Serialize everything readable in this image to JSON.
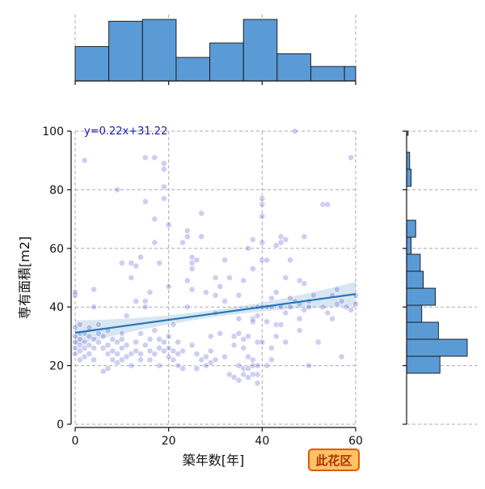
{
  "chart_data": {
    "type": "scatter",
    "xlabel": "築年数[年]",
    "ylabel": "専有面積[m2]",
    "xlim": [
      0,
      60
    ],
    "ylim": [
      0,
      100
    ],
    "xticks": [
      0,
      20,
      40,
      60
    ],
    "yticks": [
      0,
      20,
      40,
      60,
      80,
      100
    ],
    "grid": true,
    "regression": {
      "equation": "y=0.22x+31.22",
      "slope": 0.22,
      "intercept": 31.22
    },
    "badge": "此花区",
    "colors": {
      "point": "#3b3bc8",
      "line": "#1f77b4",
      "band": "#1f77b4",
      "hist": "#5b9bd5",
      "badge_fill": "#ffc266",
      "badge_stroke": "#e05a00"
    },
    "hist_x": {
      "bin_edges": [
        0,
        7.2,
        14.4,
        21.6,
        28.8,
        36.0,
        43.2,
        50.4,
        57.6,
        60
      ],
      "counts": [
        19,
        33,
        34,
        13,
        21,
        34,
        15,
        8,
        8
      ]
    },
    "hist_y": {
      "bin_edges": [
        0,
        11.6,
        17.4,
        23.2,
        29.0,
        34.8,
        40.6,
        46.4,
        52.2,
        58.0,
        63.8,
        69.6,
        75.4,
        81.2,
        87.0,
        92.8,
        98.6,
        100
      ],
      "counts": [
        0,
        0,
        22,
        40,
        21,
        10,
        19,
        11,
        9,
        3,
        6,
        0,
        0,
        3,
        2,
        0,
        1
      ]
    },
    "points": [
      [
        0,
        26
      ],
      [
        0,
        28
      ],
      [
        0,
        30
      ],
      [
        0,
        33
      ],
      [
        0,
        24
      ],
      [
        0,
        44
      ],
      [
        0,
        45
      ],
      [
        1,
        22
      ],
      [
        1,
        25
      ],
      [
        1,
        27
      ],
      [
        1,
        29
      ],
      [
        1,
        31
      ],
      [
        1,
        34
      ],
      [
        2,
        23
      ],
      [
        2,
        26
      ],
      [
        2,
        28
      ],
      [
        2,
        31
      ],
      [
        2,
        90
      ],
      [
        3,
        24
      ],
      [
        3,
        27
      ],
      [
        3,
        30
      ],
      [
        3,
        33
      ],
      [
        4,
        22
      ],
      [
        4,
        26
      ],
      [
        4,
        29
      ],
      [
        4,
        40
      ],
      [
        4,
        46
      ],
      [
        5,
        28
      ],
      [
        5,
        31
      ],
      [
        5,
        34
      ],
      [
        6,
        18
      ],
      [
        6,
        26
      ],
      [
        6,
        30
      ],
      [
        7,
        19
      ],
      [
        7,
        24
      ],
      [
        7,
        27
      ],
      [
        7,
        32
      ],
      [
        8,
        22
      ],
      [
        8,
        25
      ],
      [
        8,
        29
      ],
      [
        9,
        80
      ],
      [
        9,
        21
      ],
      [
        9,
        24
      ],
      [
        9,
        28
      ],
      [
        10,
        22
      ],
      [
        10,
        26
      ],
      [
        10,
        29
      ],
      [
        10,
        31
      ],
      [
        10,
        55
      ],
      [
        11,
        23
      ],
      [
        11,
        27
      ],
      [
        11,
        37
      ],
      [
        12,
        50
      ],
      [
        12,
        55
      ],
      [
        12,
        24
      ],
      [
        12,
        20
      ],
      [
        13,
        54
      ],
      [
        13,
        42
      ],
      [
        13,
        25
      ],
      [
        13,
        28
      ],
      [
        14,
        22
      ],
      [
        14,
        24
      ],
      [
        14,
        31
      ],
      [
        14,
        57
      ],
      [
        15,
        40
      ],
      [
        15,
        42
      ],
      [
        15,
        27
      ],
      [
        15,
        76
      ],
      [
        15,
        91
      ],
      [
        16,
        22
      ],
      [
        16,
        25
      ],
      [
        16,
        45
      ],
      [
        16,
        29
      ],
      [
        17,
        62
      ],
      [
        17,
        70
      ],
      [
        17,
        91
      ],
      [
        17,
        24
      ],
      [
        17,
        32
      ],
      [
        18,
        20
      ],
      [
        18,
        26
      ],
      [
        18,
        29
      ],
      [
        18,
        55
      ],
      [
        19,
        81
      ],
      [
        19,
        87
      ],
      [
        19,
        89
      ],
      [
        19,
        77
      ],
      [
        19,
        25
      ],
      [
        19,
        28
      ],
      [
        20,
        68
      ],
      [
        20,
        47
      ],
      [
        20,
        26
      ],
      [
        20,
        23
      ],
      [
        20,
        30
      ],
      [
        21,
        34
      ],
      [
        21,
        25
      ],
      [
        21,
        22
      ],
      [
        22,
        20
      ],
      [
        22,
        28
      ],
      [
        22,
        24
      ],
      [
        23,
        62
      ],
      [
        23,
        19
      ],
      [
        23,
        25
      ],
      [
        24,
        40
      ],
      [
        24,
        66
      ],
      [
        24,
        64
      ],
      [
        24,
        49
      ],
      [
        25,
        57
      ],
      [
        25,
        55
      ],
      [
        25,
        53
      ],
      [
        25,
        46
      ],
      [
        25,
        27
      ],
      [
        26,
        56
      ],
      [
        26,
        19
      ],
      [
        26,
        24
      ],
      [
        27,
        72
      ],
      [
        27,
        64
      ],
      [
        27,
        22
      ],
      [
        28,
        20
      ],
      [
        28,
        23
      ],
      [
        28,
        45
      ],
      [
        29,
        25
      ],
      [
        29,
        30
      ],
      [
        29,
        21
      ],
      [
        30,
        44
      ],
      [
        30,
        50
      ],
      [
        30,
        38
      ],
      [
        30,
        22
      ],
      [
        31,
        31
      ],
      [
        31,
        47
      ],
      [
        32,
        56
      ],
      [
        32,
        23
      ],
      [
        32,
        42
      ],
      [
        33,
        17
      ],
      [
        33,
        50
      ],
      [
        34,
        16
      ],
      [
        34,
        27
      ],
      [
        34,
        30
      ],
      [
        35,
        15
      ],
      [
        35,
        20
      ],
      [
        35,
        31
      ],
      [
        35,
        44
      ],
      [
        35,
        36
      ],
      [
        36,
        17
      ],
      [
        36,
        19
      ],
      [
        36,
        26
      ],
      [
        36,
        29
      ],
      [
        36,
        49
      ],
      [
        37,
        16
      ],
      [
        37,
        19
      ],
      [
        37,
        23
      ],
      [
        37,
        30
      ],
      [
        37,
        60
      ],
      [
        38,
        17
      ],
      [
        38,
        20
      ],
      [
        38,
        22
      ],
      [
        38,
        36
      ],
      [
        38,
        53
      ],
      [
        38,
        63
      ],
      [
        38,
        35
      ],
      [
        39,
        14
      ],
      [
        39,
        17
      ],
      [
        39,
        20
      ],
      [
        39,
        28
      ],
      [
        39,
        37
      ],
      [
        39,
        40
      ],
      [
        40,
        56
      ],
      [
        40,
        62
      ],
      [
        40,
        71
      ],
      [
        40,
        40
      ],
      [
        40,
        28
      ],
      [
        40,
        75
      ],
      [
        40,
        77
      ],
      [
        41,
        20
      ],
      [
        41,
        40
      ],
      [
        41,
        56
      ],
      [
        41,
        35
      ],
      [
        42,
        22
      ],
      [
        42,
        40
      ],
      [
        42,
        43
      ],
      [
        42,
        26
      ],
      [
        43,
        30
      ],
      [
        43,
        34
      ],
      [
        43,
        45
      ],
      [
        43,
        61
      ],
      [
        44,
        64
      ],
      [
        44,
        62
      ],
      [
        44,
        40
      ],
      [
        44,
        34
      ],
      [
        45,
        28
      ],
      [
        45,
        38
      ],
      [
        45,
        50
      ],
      [
        45,
        63
      ],
      [
        46,
        40
      ],
      [
        46,
        43
      ],
      [
        46,
        56
      ],
      [
        47,
        100
      ],
      [
        47,
        42
      ],
      [
        48,
        36
      ],
      [
        48,
        41
      ],
      [
        48,
        49
      ],
      [
        48,
        32
      ],
      [
        49,
        48
      ],
      [
        49,
        64
      ],
      [
        49,
        39
      ],
      [
        50,
        20
      ],
      [
        50,
        42
      ],
      [
        50,
        40
      ],
      [
        51,
        44
      ],
      [
        52,
        28
      ],
      [
        53,
        40
      ],
      [
        53,
        75
      ],
      [
        54,
        75
      ],
      [
        54,
        38
      ],
      [
        55,
        44
      ],
      [
        55,
        36
      ],
      [
        56,
        41
      ],
      [
        56,
        46
      ],
      [
        57,
        23
      ],
      [
        57,
        42
      ],
      [
        58,
        40
      ],
      [
        59,
        39
      ],
      [
        59,
        91
      ],
      [
        60,
        41
      ],
      [
        60,
        44
      ]
    ]
  }
}
